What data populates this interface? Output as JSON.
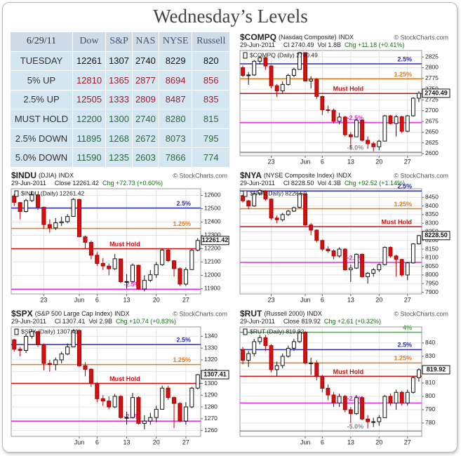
{
  "title": "Wednesday’s Levels",
  "table": {
    "header": [
      "6/29/11",
      "Dow",
      "S&P",
      "NAS",
      "NYSE",
      "Russell"
    ],
    "rows": [
      [
        "TUESDAY",
        12261,
        1307,
        2740,
        8229,
        820
      ],
      [
        "5% UP",
        12810,
        1365,
        2877,
        8694,
        856
      ],
      [
        "2.5% UP",
        12505,
        1333,
        2809,
        8487,
        835
      ],
      [
        "MUST HOLD",
        12200,
        1300,
        2740,
        8280,
        815
      ],
      [
        "2.5% DOWN",
        11895,
        1268,
        2672,
        8073,
        795
      ],
      [
        "5.0% DOWN",
        11590,
        1235,
        2603,
        7866,
        774
      ]
    ]
  },
  "chart_data": [
    {
      "type": "candlestick",
      "symbol": "$COMPQ",
      "name": "(Nasdaq Composite)",
      "exchange": "INDX",
      "source": "© StockCharts.com",
      "date": "29-Jun-2011",
      "stats": [
        "Cl 2740.49",
        "Vol 1.8B",
        "Chg +11.18 (+0.41%)"
      ],
      "legend": "$COMPQ (Daily) 2740.49",
      "last_label": "2740.49",
      "ylim": [
        2595,
        2840
      ],
      "yticks": [
        2600,
        2625,
        2650,
        2675,
        2700,
        2725,
        2750,
        2775,
        2800,
        2825
      ],
      "xticks": [
        {
          "value": 5,
          "label": "23"
        },
        {
          "value": 11,
          "label": "Jun"
        },
        {
          "value": 14,
          "label": "6"
        },
        {
          "value": 19,
          "label": "13"
        },
        {
          "value": 24,
          "label": "20"
        },
        {
          "value": 29,
          "label": "27"
        }
      ],
      "levels": [
        {
          "label": "2.5%",
          "value": 2809,
          "color": "#2a2ab8"
        },
        {
          "label": "1.25%",
          "value": 2774,
          "color": "#e07b20"
        },
        {
          "label": "Must Hold",
          "value": 2740,
          "color": "#cc1010"
        },
        {
          "label": "-2.5%",
          "value": 2672,
          "color": "#e02ce0"
        },
        {
          "label": "-5.0%",
          "value": 2603,
          "color": "#8a8a8a"
        }
      ],
      "candles": {
        "open": [
          2800,
          2782,
          2783,
          2815,
          2823,
          2804,
          2758,
          2746,
          2761,
          2782,
          2796,
          2835,
          2769,
          2773,
          2733,
          2702,
          2701,
          2675,
          2685,
          2644,
          2639,
          2678,
          2631,
          2623,
          2616,
          2629,
          2688,
          2670,
          2686,
          2652,
          2688,
          2729
        ],
        "high": [
          2805,
          2790,
          2818,
          2828,
          2825,
          2806,
          2762,
          2768,
          2786,
          2800,
          2837,
          2836,
          2780,
          2776,
          2735,
          2712,
          2705,
          2695,
          2688,
          2650,
          2682,
          2679,
          2640,
          2628,
          2632,
          2690,
          2690,
          2690,
          2688,
          2690,
          2731,
          2745
        ],
        "low": [
          2778,
          2760,
          2781,
          2808,
          2795,
          2752,
          2732,
          2740,
          2758,
          2778,
          2798,
          2768,
          2752,
          2727,
          2690,
          2695,
          2670,
          2668,
          2640,
          2611,
          2640,
          2628,
          2611,
          2605,
          2608,
          2629,
          2668,
          2640,
          2648,
          2650,
          2686,
          2720
        ],
        "close": [
          2782,
          2783,
          2815,
          2823,
          2804,
          2758,
          2746,
          2761,
          2782,
          2796,
          2835,
          2769,
          2773,
          2733,
          2702,
          2701,
          2675,
          2685,
          2644,
          2639,
          2678,
          2631,
          2623,
          2616,
          2629,
          2688,
          2670,
          2686,
          2652,
          2688,
          2729,
          2740.49
        ]
      }
    },
    {
      "type": "candlestick",
      "symbol": "$INDU",
      "name": "(DJIA)",
      "exchange": "INDX",
      "source": "© StockCharts.com",
      "date": "29-Jun-2011",
      "stats": [
        "Close 12261.42",
        "Chg +72.73 (+0.60%)"
      ],
      "legend": "$INDU (Daily) 12261.42",
      "last_label": "12261.42",
      "ylim": [
        11860,
        12650
      ],
      "yticks": [
        11900,
        12000,
        12100,
        12200,
        12300,
        12400,
        12500,
        12600
      ],
      "xticks": [
        {
          "value": 5,
          "label": "23"
        },
        {
          "value": 11,
          "label": "Jun"
        },
        {
          "value": 14,
          "label": "6"
        },
        {
          "value": 19,
          "label": "13"
        },
        {
          "value": 24,
          "label": "20"
        },
        {
          "value": 29,
          "label": "27"
        }
      ],
      "levels": [
        {
          "label": "2.5%",
          "value": 12505,
          "color": "#2a2ab8"
        },
        {
          "label": "1.25%",
          "value": 12352,
          "color": "#e07b20"
        },
        {
          "label": "Must Hold",
          "value": 12200,
          "color": "#cc1010"
        },
        {
          "label": "-2.5%",
          "value": 11895,
          "color": "#e02ce0"
        }
      ],
      "candles": {
        "open": [
          12595,
          12546,
          12479,
          12561,
          12604,
          12511,
          12381,
          12356,
          12394,
          12403,
          12442,
          12569,
          12289,
          12247,
          12151,
          12089,
          12069,
          12049,
          12123,
          11952,
          11953,
          12075,
          11897,
          11962,
          12004,
          12080,
          12189,
          12109,
          12050,
          11934,
          12043,
          12188
        ],
        "high": [
          12610,
          12550,
          12575,
          12630,
          12610,
          12515,
          12420,
          12430,
          12440,
          12460,
          12580,
          12575,
          12300,
          12260,
          12175,
          12130,
          12090,
          12160,
          12125,
          12010,
          12090,
          12080,
          12000,
          12040,
          12100,
          12200,
          12195,
          12115,
          12060,
          12060,
          12200,
          12280
        ],
        "low": [
          12520,
          12420,
          12470,
          12550,
          12490,
          12350,
          12320,
          12340,
          12370,
          12390,
          12440,
          12285,
          12200,
          12120,
          12070,
          12040,
          12000,
          12040,
          11940,
          11900,
          11950,
          11890,
          11880,
          11950,
          11980,
          12070,
          12100,
          11990,
          11920,
          11920,
          12040,
          12180
        ],
        "close": [
          12548,
          12479,
          12561,
          12605,
          12512,
          12381,
          12356,
          12394,
          12402,
          12441,
          12570,
          12290,
          12248,
          12151,
          12089,
          12070,
          12049,
          12124,
          11952,
          11953,
          12076,
          11897,
          11962,
          12004,
          12080,
          12190,
          12110,
          12050,
          11934,
          12043,
          12188,
          12261.42
        ]
      }
    },
    {
      "type": "candlestick",
      "symbol": "$NYA",
      "name": "(NYSE Composite Index)",
      "exchange": "INDX",
      "source": "© StockCharts.com",
      "date": "29-Jun-2011",
      "stats": [
        "Cl 8228.50",
        "Vol 4.3B",
        "Chg +92.52 (+1.14%)"
      ],
      "legend": "$NYA (Daily) 8228.50",
      "last_label": "8228.50",
      "ylim": [
        7890,
        8500
      ],
      "yticks": [
        7900,
        7950,
        8000,
        8050,
        8100,
        8150,
        8200,
        8250,
        8300,
        8350,
        8400,
        8450
      ],
      "xticks": [
        {
          "value": 5,
          "label": "23"
        },
        {
          "value": 11,
          "label": "Jun"
        },
        {
          "value": 14,
          "label": "6"
        },
        {
          "value": 19,
          "label": "13"
        },
        {
          "value": 24,
          "label": "20"
        },
        {
          "value": 29,
          "label": "27"
        }
      ],
      "levels": [
        {
          "label": "2.5%",
          "value": 8487,
          "color": "#2a2ab8"
        },
        {
          "label": "1.25%",
          "value": 8384,
          "color": "#e07b20"
        },
        {
          "label": "Must Hold",
          "value": 8280,
          "color": "#cc1010"
        },
        {
          "label": "-2.5%",
          "value": 8073,
          "color": "#e02ce0"
        }
      ],
      "candles": {
        "open": [
          8460,
          8430,
          8400,
          8470,
          8488,
          8440,
          8330,
          8320,
          8350,
          8370,
          8392,
          8470,
          8290,
          8260,
          8200,
          8150,
          8140,
          8110,
          8150,
          8030,
          8040,
          8120,
          7990,
          8010,
          8030,
          8060,
          8160,
          8110,
          8090,
          8000,
          8070,
          8180
        ],
        "high": [
          8465,
          8435,
          8476,
          8498,
          8492,
          8442,
          8345,
          8360,
          8378,
          8396,
          8476,
          8474,
          8300,
          8265,
          8205,
          8165,
          8148,
          8160,
          8155,
          8060,
          8125,
          8124,
          8018,
          8040,
          8068,
          8165,
          8165,
          8118,
          8094,
          8074,
          8185,
          8232
        ],
        "low": [
          8420,
          8380,
          8395,
          8462,
          8430,
          8320,
          8300,
          8310,
          8342,
          8365,
          8388,
          8285,
          8230,
          8190,
          8138,
          8128,
          8090,
          8100,
          8025,
          7960,
          8035,
          7985,
          7950,
          7990,
          8018,
          8055,
          8100,
          7990,
          7990,
          7970,
          8065,
          8176
        ],
        "close": [
          8430,
          8400,
          8470,
          8490,
          8440,
          8330,
          8320,
          8350,
          8370,
          8390,
          8470,
          8290,
          8260,
          8200,
          8150,
          8140,
          8110,
          8150,
          8030,
          8040,
          8120,
          7990,
          8010,
          8030,
          8060,
          8160,
          8110,
          8090,
          8000,
          8070,
          8180,
          8228.5
        ]
      }
    },
    {
      "type": "candlestick",
      "symbol": "$SPX",
      "name": "(S&P 500 Large Cap Index)",
      "exchange": "INDX",
      "source": "© StockCharts.com",
      "date": "29-Jun-2011",
      "stats": [
        "Cl 1307.41",
        "Vol 2.9B",
        "Chg +10.74 (+0.83%)"
      ],
      "legend": "$SPX (Daily) 1307.41",
      "last_label": "1307.41",
      "ylim": [
        1255,
        1348
      ],
      "yticks": [
        1260,
        1270,
        1280,
        1290,
        1300,
        1310,
        1320,
        1330,
        1340
      ],
      "xticks": [
        {
          "value": 11,
          "label": "Jun"
        },
        {
          "value": 14,
          "label": "6"
        },
        {
          "value": 19,
          "label": "13"
        },
        {
          "value": 24,
          "label": "20"
        },
        {
          "value": 29,
          "label": "27"
        }
      ],
      "levels": [
        {
          "label": "2.5%",
          "value": 1333,
          "color": "#2a2ab8"
        },
        {
          "label": "1.25%",
          "value": 1316,
          "color": "#e07b20"
        },
        {
          "label": "Must Hold",
          "value": 1300,
          "color": "#cc1010"
        },
        {
          "label": "-2.5%",
          "value": 1268,
          "color": "#e02ce0"
        }
      ],
      "candles": {
        "open": [
          1337,
          1329,
          1328,
          1340,
          1344,
          1333,
          1317,
          1316,
          1320,
          1325,
          1331,
          1345,
          1315,
          1312,
          1300,
          1287,
          1285,
          1280,
          1289,
          1271,
          1271,
          1288,
          1266,
          1268,
          1271,
          1278,
          1296,
          1288,
          1283,
          1268,
          1280,
          1296
        ],
        "high": [
          1338,
          1331,
          1342,
          1346,
          1343,
          1334,
          1320,
          1322,
          1327,
          1334,
          1346,
          1346,
          1318,
          1313,
          1301,
          1290,
          1289,
          1291,
          1290,
          1276,
          1292,
          1289,
          1273,
          1275,
          1281,
          1298,
          1298,
          1289,
          1284,
          1284,
          1297,
          1308
        ],
        "low": [
          1327,
          1323,
          1326,
          1338,
          1331,
          1311,
          1310,
          1311,
          1317,
          1324,
          1331,
          1314,
          1306,
          1297,
          1284,
          1281,
          1278,
          1279,
          1270,
          1265,
          1271,
          1265,
          1261,
          1265,
          1267,
          1278,
          1286,
          1262,
          1267,
          1265,
          1279,
          1295
        ],
        "close": [
          1329,
          1328,
          1340,
          1344,
          1333,
          1317,
          1316,
          1320,
          1325,
          1331,
          1345,
          1315,
          1312,
          1300,
          1287,
          1285,
          1280,
          1289,
          1271,
          1271,
          1288,
          1266,
          1268,
          1271,
          1278,
          1296,
          1288,
          1283,
          1268,
          1280,
          1296,
          1307.41
        ]
      }
    },
    {
      "type": "candlestick",
      "symbol": "$RUT",
      "name": "(Russell 2000)",
      "exchange": "INDX",
      "source": "© StockCharts.com",
      "date": "29-Jun-2011",
      "stats": [
        "Close 819.92",
        "Chg +2.61 (+0.32%)"
      ],
      "legend": "$RUT (Daily) 819.92",
      "last_label": "819.92",
      "ylim": [
        770,
        852
      ],
      "yticks": [
        780,
        790,
        800,
        810,
        820,
        830,
        840
      ],
      "xticks": [
        {
          "value": 11,
          "label": "Jun"
        },
        {
          "value": 14,
          "label": "6"
        },
        {
          "value": 19,
          "label": "13"
        },
        {
          "value": 24,
          "label": "20"
        },
        {
          "value": 29,
          "label": "27"
        }
      ],
      "levels": [
        {
          "label": "4%",
          "value": 848,
          "color": "#3fb43f"
        },
        {
          "label": "2.5%",
          "value": 835,
          "color": "#2a2ab8"
        },
        {
          "label": "1.25%",
          "value": 825,
          "color": "#e07b20"
        },
        {
          "label": "Must Hold",
          "value": 815,
          "color": "#cc1010"
        },
        {
          "label": "-2.5%",
          "value": 795,
          "color": "#e02ce0"
        },
        {
          "label": "-5.0%",
          "value": 774,
          "color": "#8a8a8a"
        }
      ],
      "candles": {
        "open": [
          835,
          827,
          832,
          841,
          844,
          838,
          820,
          823,
          830,
          836,
          841,
          848,
          825,
          825,
          815,
          806,
          801,
          795,
          800,
          790,
          787,
          799,
          783,
          781,
          781,
          784,
          800,
          795,
          803,
          795,
          803,
          814
        ],
        "high": [
          837,
          834,
          843,
          846,
          846,
          839,
          826,
          832,
          838,
          843,
          849,
          849,
          829,
          827,
          816,
          809,
          803,
          802,
          801,
          792,
          801,
          800,
          786,
          784,
          786,
          801,
          802,
          805,
          804,
          805,
          815,
          821
        ],
        "low": [
          824,
          822,
          830,
          839,
          834,
          818,
          815,
          821,
          829,
          834,
          840,
          824,
          816,
          812,
          803,
          797,
          792,
          792,
          788,
          780,
          786,
          782,
          776,
          777,
          778,
          784,
          793,
          790,
          793,
          793,
          802,
          811
        ],
        "close": [
          827,
          832,
          841,
          844,
          838,
          820,
          823,
          830,
          836,
          841,
          848,
          825,
          825,
          815,
          806,
          801,
          795,
          800,
          790,
          787,
          799,
          783,
          781,
          781,
          784,
          800,
          795,
          803,
          795,
          803,
          814,
          819.92
        ]
      }
    }
  ]
}
